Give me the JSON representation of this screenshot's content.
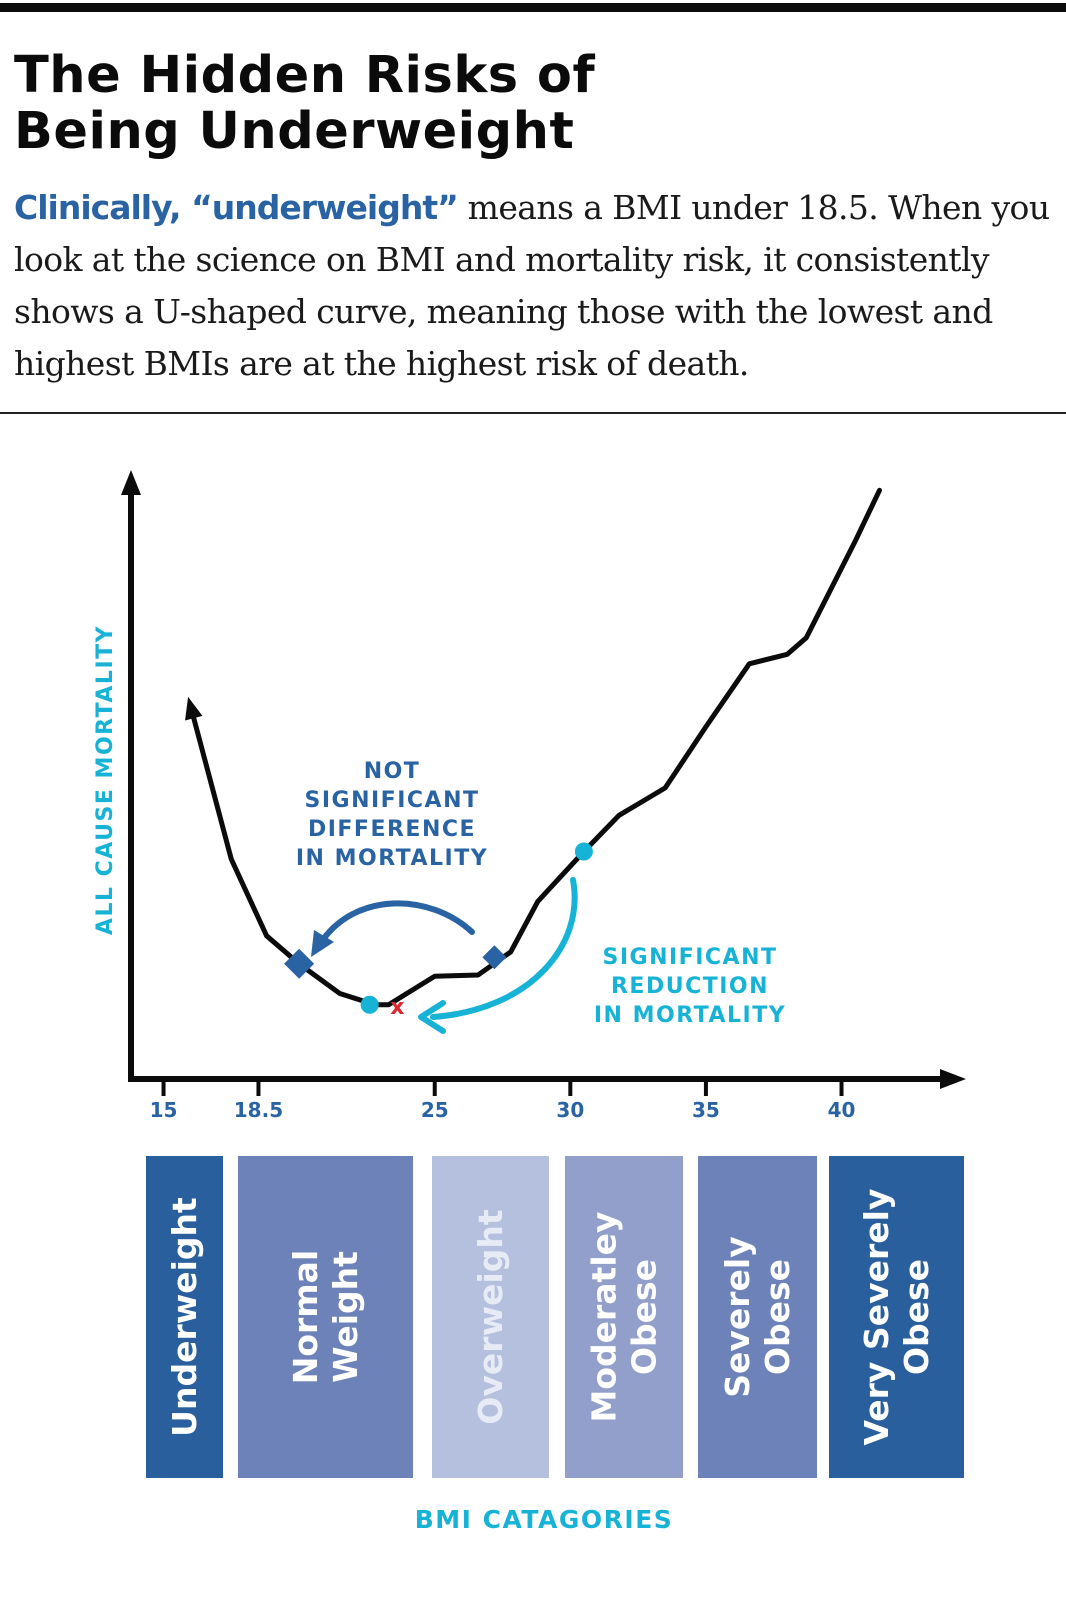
{
  "title": {
    "line1": "The Hidden Risks of",
    "line2": "Being Underweight"
  },
  "intro": {
    "lead": "Clinically, “underweight”",
    "body": " means a BMI under 18.5. When you look at the science on BMI and mortality risk, it consistently shows a U-shaped curve, meaning those with the lowest and highest BMIs are at the highest risk of death."
  },
  "colors": {
    "black": "#0b0b0b",
    "teal": "#16b3d6",
    "blue": "#2a63a4",
    "red": "#e0262f"
  },
  "chart_data": {
    "type": "line",
    "title": "",
    "xlabel": "BMI CATAGORIES",
    "ylabel": "ALL CAUSE MORTALITY",
    "x_ticks": [
      "15",
      "18.5",
      "25",
      "30",
      "35",
      "40"
    ],
    "x_tick_values": [
      15,
      18.5,
      25,
      30,
      35,
      40
    ],
    "xlim": [
      13.8,
      44
    ],
    "ylim": [
      0,
      1
    ],
    "series": [
      {
        "x": [
          16,
          17.5,
          18.8,
          20,
          21.5,
          22.8,
          23.3,
          25,
          26.6,
          27.8,
          28.8,
          30.5,
          31.8,
          33.5,
          35,
          36.6,
          38,
          38.7,
          40.5,
          41.4
        ],
        "y": [
          0.627,
          0.37,
          0.241,
          0.194,
          0.144,
          0.125,
          0.125,
          0.173,
          0.175,
          0.214,
          0.299,
          0.383,
          0.444,
          0.49,
          0.593,
          0.699,
          0.715,
          0.743,
          0.905,
          0.991
        ]
      }
    ],
    "markers": {
      "diamonds": [
        {
          "x": 20,
          "y": 0.194
        },
        {
          "x": 27.2,
          "y": 0.205
        }
      ],
      "circles": [
        {
          "x": 22.6,
          "y": 0.125
        },
        {
          "x": 30.5,
          "y": 0.383
        }
      ],
      "cross": {
        "x": 23.4,
        "y": 0.125,
        "symbol": "x"
      }
    },
    "annotations": [
      {
        "lines": [
          "NOT",
          "SIGNIFICANT",
          "DIFFERENCE",
          "IN MORTALITY"
        ]
      },
      {
        "lines": [
          "SIGNIFICANT",
          "REDUCTION",
          "IN MORTALITY"
        ]
      }
    ],
    "categories": [
      {
        "lines": [
          "Underweight"
        ],
        "color": "#2a5f9e",
        "text_color": "#ffffff",
        "x_from": 15,
        "x_to": 18
      }
    ],
    "category_bands": [
      {
        "lines": [
          "Underweight"
        ],
        "color": "#2a5f9e"
      },
      {
        "lines": [
          "Normal",
          "Weight"
        ],
        "color": "#6c82b8"
      },
      {
        "lines": [
          "Overweight"
        ],
        "color": "#b5c0de"
      },
      {
        "lines": [
          "Moderatley",
          "Obese"
        ],
        "color": "#929fca"
      },
      {
        "lines": [
          "Severely",
          "Obese"
        ],
        "color": "#6c82b8"
      },
      {
        "lines": [
          "Very Severely",
          "Obese"
        ],
        "color": "#2a5f9e"
      }
    ]
  }
}
